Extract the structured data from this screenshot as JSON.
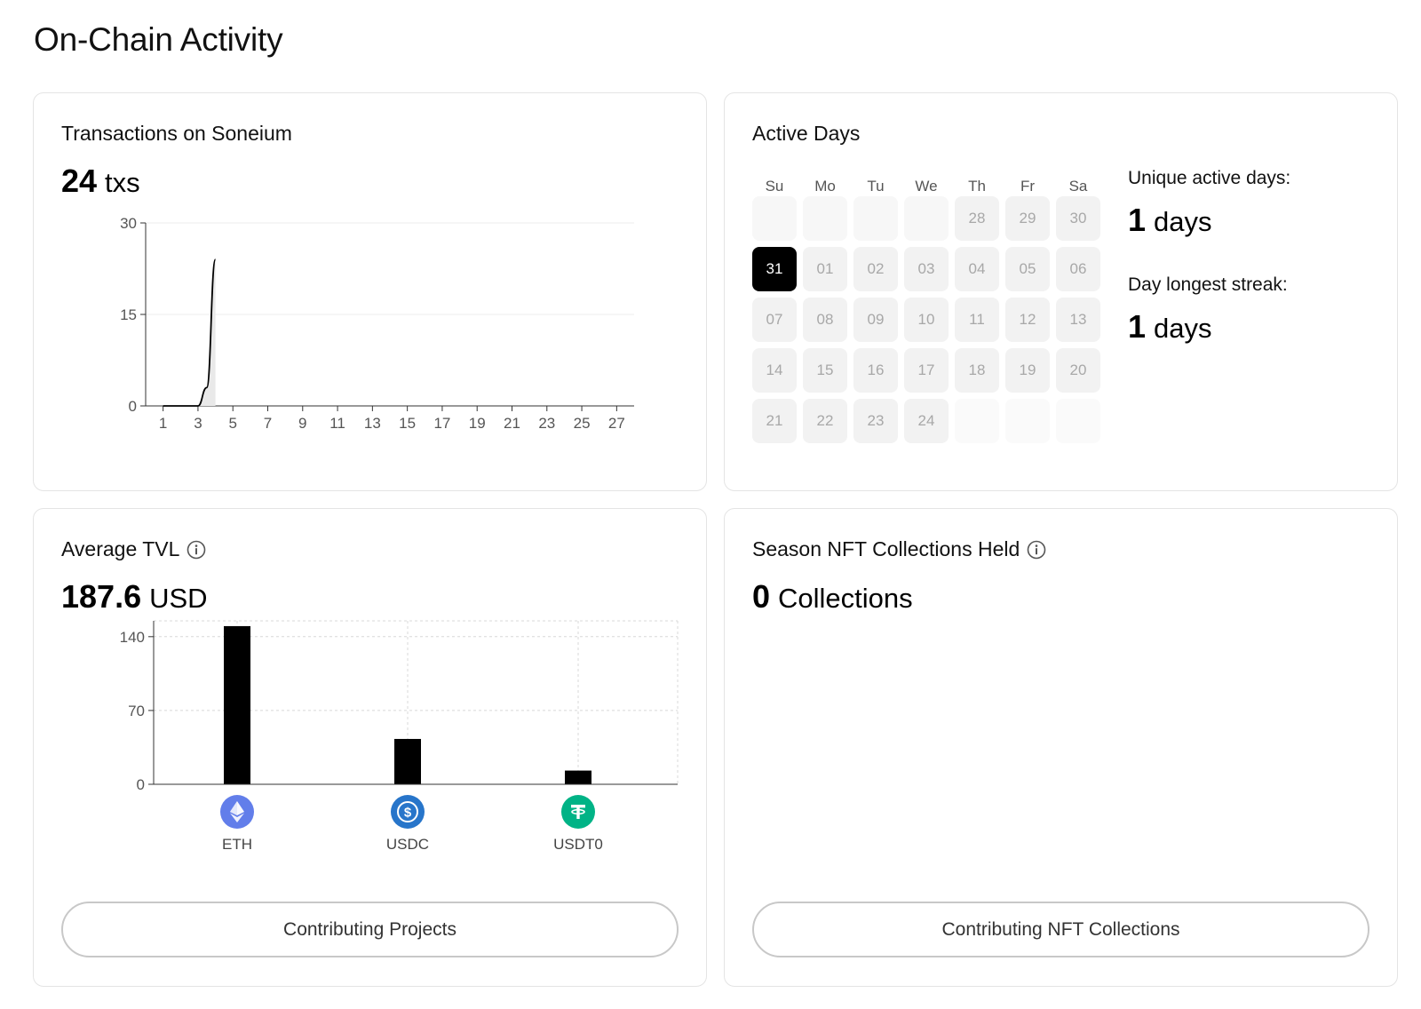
{
  "page": {
    "title": "On-Chain Activity"
  },
  "transactions": {
    "title": "Transactions on Soneium",
    "value": "24",
    "unit": "txs",
    "chart_data": {
      "type": "area",
      "x": [
        1,
        2,
        3,
        3.5,
        4
      ],
      "y": [
        0,
        0,
        0,
        3,
        24
      ],
      "xticks": [
        "1",
        "3",
        "5",
        "7",
        "9",
        "11",
        "13",
        "15",
        "17",
        "19",
        "21",
        "23",
        "25",
        "27"
      ],
      "yticks": [
        "0",
        "15",
        "30"
      ],
      "xlim": [
        0,
        28
      ],
      "ylim": [
        0,
        30
      ],
      "grid": true
    }
  },
  "active_days": {
    "title": "Active Days",
    "weekdays": [
      "Su",
      "Mo",
      "Tu",
      "We",
      "Th",
      "Fr",
      "Sa"
    ],
    "rows": [
      [
        "",
        "",
        "",
        "",
        "28",
        "29",
        "30"
      ],
      [
        "31",
        "01",
        "02",
        "03",
        "04",
        "05",
        "06"
      ],
      [
        "07",
        "08",
        "09",
        "10",
        "11",
        "12",
        "13"
      ],
      [
        "14",
        "15",
        "16",
        "17",
        "18",
        "19",
        "20"
      ],
      [
        "21",
        "22",
        "23",
        "24",
        "",
        "",
        ""
      ]
    ],
    "active": [
      "31"
    ],
    "unique_label": "Unique active days:",
    "unique_value": "1",
    "unique_unit": "days",
    "streak_label": "Day longest streak:",
    "streak_value": "1",
    "streak_unit": "days"
  },
  "tvl": {
    "title": "Average TVL",
    "value": "187.6",
    "unit": "USD",
    "button": "Contributing Projects",
    "chart_data": {
      "type": "bar",
      "categories": [
        "ETH",
        "USDC",
        "USDT0"
      ],
      "values": [
        150,
        43,
        13
      ],
      "yticks": [
        "0",
        "70",
        "140"
      ],
      "ylim": [
        0,
        155
      ],
      "grid": true
    },
    "tokens": [
      {
        "label": "ETH",
        "icon": "eth-icon",
        "color": "#627eea"
      },
      {
        "label": "USDC",
        "icon": "usdc-icon",
        "color": "#2775ca"
      },
      {
        "label": "USDT0",
        "icon": "usdt0-icon",
        "color": "#00b386"
      }
    ]
  },
  "nft": {
    "title": "Season NFT Collections Held",
    "value": "0",
    "unit": "Collections",
    "button": "Contributing NFT Collections"
  }
}
